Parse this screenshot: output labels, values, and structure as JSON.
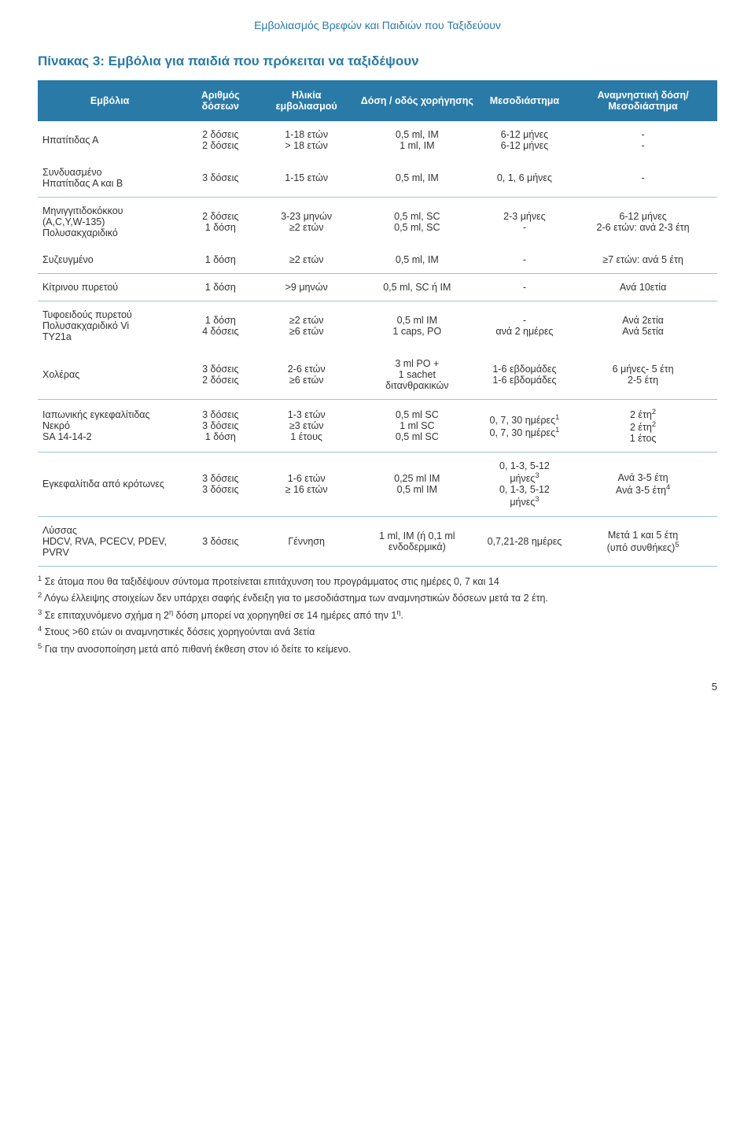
{
  "running_head": "Εμβολιασμός Βρεφών και Παιδιών που Ταξιδεύουν",
  "title": "Πίνακας 3: Εμβόλια για παιδιά που πρόκειται να ταξιδέψουν",
  "columns": [
    "Εμβόλια",
    "Αριθμός δόσεων",
    "Ηλικία εμβολιασμού",
    "Δόση / οδός χορήγησης",
    "Μεσοδιάστημα",
    "Αναμνηστική δόση/ Μεσοδιάστημα"
  ],
  "r0": {
    "c0": "Ηπατίτιδας Α",
    "c1": "2 δόσεις\n2 δόσεις",
    "c2": "1-18 ετών\n> 18 ετών",
    "c3": "0,5 ml, IM\n1 ml, IM",
    "c4": "6-12 μήνες\n6-12 μήνες",
    "c5": "-\n-"
  },
  "r1": {
    "c0": "Συνδυασμένο\nΗπατίτιδας Α και Β",
    "c1": "3 δόσεις",
    "c2": "1-15 ετών",
    "c3": "0,5 ml, IM",
    "c4": "0, 1, 6 μήνες",
    "c5": "-"
  },
  "r2": {
    "c0": "Μηνιγγιτιδοκόκκου\n(A,C,Y,W-135)\nΠολυσακχαριδικό",
    "c1": "2 δόσεις\n1 δόση",
    "c2": "3-23 μηνών\n≥2 ετών",
    "c3": "0,5 ml, SC\n0,5 ml, SC",
    "c4": "2-3 μήνες\n-",
    "c5": "6-12 μήνες\n2-6 ετών: ανά 2-3 έτη"
  },
  "r3": {
    "c0": "Συζευγμένο",
    "c1": "1 δόση",
    "c2": "≥2 ετών",
    "c3": "0,5 ml, IM",
    "c4": "-",
    "c5": "≥7 ετών: ανά 5 έτη"
  },
  "r4": {
    "c0": "Κίτρινου πυρετού",
    "c1": "1 δόση",
    "c2": ">9 μηνών",
    "c3": "0,5 ml, SC ή IM",
    "c4": "-",
    "c5": "Ανά 10ετία"
  },
  "r5": {
    "c0": "Τυφοειδούς πυρετού\nΠολυσακχαριδικό Vi\nTY21a",
    "c1": "1 δόση\n4 δόσεις",
    "c2": "≥2 ετών\n≥6 ετών",
    "c3": "0,5 ml IM\n1 caps, PO",
    "c4": "-\nανά 2 ημέρες",
    "c5": "Ανά 2ετία\nΑνά 5ετία"
  },
  "r6": {
    "c0": "Χολέρας",
    "c1": "3 δόσεις\n2 δόσεις",
    "c2": "2-6 ετών\n≥6 ετών",
    "c3": "3 ml PO +\n1 sachet\nδιτανθρακικών",
    "c4": "1-6 εβδομάδες\n1-6 εβδομάδες",
    "c5": "6 μήνες- 5 έτη\n2-5 έτη"
  },
  "r7": {
    "c0": "Ιαπωνικής εγκεφαλίτιδας\nΝεκρό\nSA 14-14-2",
    "c1": "3 δόσεις\n3 δόσεις\n1 δόση",
    "c2": "1-3 ετών\n≥3 ετών\n1 έτους",
    "c3": "0,5 ml SC\n1 ml SC\n0,5 ml SC",
    "c4_a": "0, 7, 30 ημέρες",
    "c4_b": "0, 7, 30 ημέρες",
    "c5_a": "2 έτη",
    "c5_b": "2 έτη",
    "c5_c": "1 έτος"
  },
  "r8": {
    "c0": "Εγκεφαλίτιδα από κρότωνες",
    "c1": "3 δόσεις\n3 δόσεις",
    "c2": "1-6 ετών\n≥ 16 ετών",
    "c3": "0,25 ml IM\n0,5 ml IM",
    "c4_a": "0, 1-3, 5-12 μήνες",
    "c4_b": "0, 1-3, 5-12 μήνες",
    "c5_a": "Ανά 3-5 έτη",
    "c5_b": "Ανά 3-5 έτη"
  },
  "r9": {
    "c0": "Λύσσας\nHDCV, RVA, PCECV, PDEV, PVRV",
    "c1": "3 δόσεις",
    "c2": "Γέννηση",
    "c3": "1 ml, IM (ή 0,1 ml ενδοδερμικά)",
    "c4": "0,7,21-28 ημέρες",
    "c5_a": "Μετά 1 και 5 έτη",
    "c5_b": "(υπό συνθήκες)"
  },
  "footnotes": {
    "f1": " Σε άτομα που θα ταξιδέψουν σύντομα προτείνεται επιτάχυνση του προγράμματος στις ημέρες 0, 7 και 14",
    "f2": " Λόγω έλλειψης στοιχείων δεν υπάρχει σαφής ένδειξη για το μεσοδιάστημα των αναμνηστικών δόσεων μετά τα 2 έτη.",
    "f3a": " Σε επιταχυνόμενο σχήμα η 2",
    "f3b": " δόση μπορεί να χορηγηθεί σε 14 ημέρες από την 1",
    "f4": " Στους >60 ετών οι αναμνηστικές δόσεις χορηγούνται ανά 3ετία",
    "f5": " Για την ανοσοποίηση μετά από πιθανή έκθεση στον ιό δείτε το κείμενο.",
    "sup_n": "η"
  },
  "page_number": "5"
}
